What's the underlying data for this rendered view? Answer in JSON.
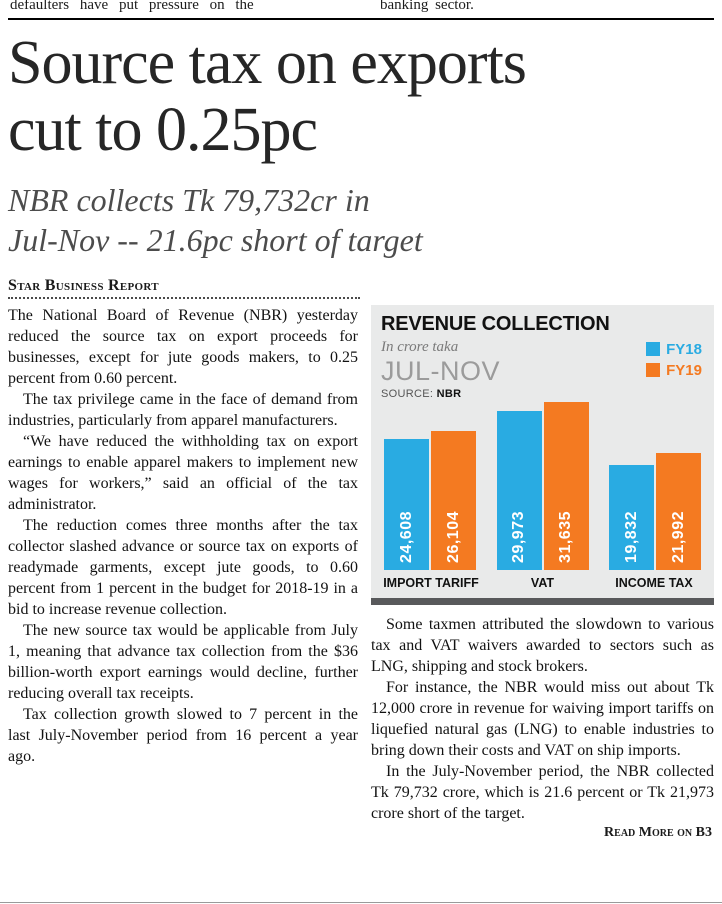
{
  "top_strip": {
    "left_text": "defaulters have put pressure on the",
    "right_text": "banking sector."
  },
  "headline": {
    "line1": "Source tax on exports",
    "line2": "cut to 0.25pc"
  },
  "subhead": {
    "line1": "NBR collects Tk 79,732cr in",
    "line2": "Jul-Nov -- 21.6pc short of target"
  },
  "byline": "Star Business Report",
  "article": {
    "left_paragraphs": [
      "The National Board of Revenue (NBR) yesterday reduced the source tax on export proceeds for businesses, except for jute goods makers, to 0.25 percent from 0.60 percent.",
      "The tax privilege came in the face of demand from industries, particularly from apparel manufacturers.",
      "“We have reduced the withholding tax on export earnings to enable apparel makers to implement new wages for workers,” said an official of the tax administrator.",
      "The reduction comes three months after the tax collector slashed advance or source tax on exports of readymade garments, except jute goods, to 0.60 percent from 1 percent in the budget for 2018-19 in a bid to increase revenue collection.",
      "The new source tax would be applicable from July 1, meaning that advance tax collection from the $36 billion-worth export earnings would decline, further reducing overall tax receipts.",
      "Tax collection growth slowed to 7 percent in the last July-November period from 16 percent a year ago."
    ],
    "right_paragraphs": [
      "Some taxmen attributed the slowdown to various tax and VAT waivers awarded to sectors such as LNG, shipping and stock brokers.",
      "For instance, the NBR would miss out about Tk 12,000 crore in revenue for waiving import tariffs on liquefied natural gas (LNG) to enable industries to bring down their costs and VAT on ship imports.",
      "In the July-November period, the NBR collected Tk 79,732 crore, which is 21.6 percent or Tk 21,973 crore short of the target."
    ],
    "read_more": "Read More on B3"
  },
  "chart_data": {
    "type": "bar",
    "title": "REVENUE COLLECTION",
    "subtitle": "In crore taka",
    "period": "JUL-NOV",
    "source_label": "SOURCE:",
    "source_value": "NBR",
    "categories": [
      "IMPORT TARIFF",
      "VAT",
      "INCOME TAX"
    ],
    "series": [
      {
        "name": "FY18",
        "color": "#29abe2",
        "values": [
          24608,
          29973,
          19832
        ]
      },
      {
        "name": "FY19",
        "color": "#f47a21",
        "values": [
          26104,
          31635,
          21992
        ]
      }
    ],
    "ylim": [
      0,
      31635
    ],
    "grid": false,
    "legend_position": "top-right",
    "footer_bar_color": "#58595b"
  }
}
